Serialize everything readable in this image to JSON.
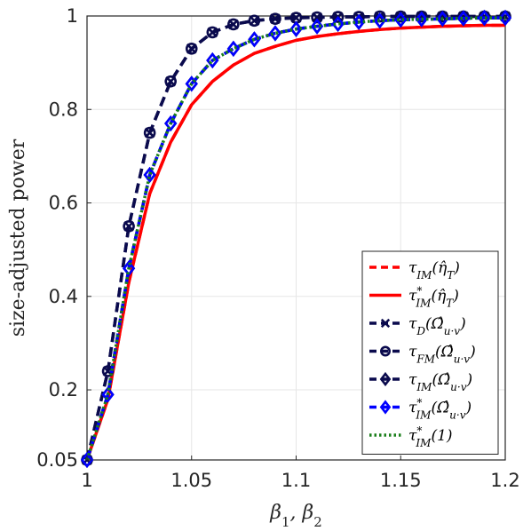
{
  "chart_data": {
    "type": "line",
    "xlabel": "β1, β2",
    "ylabel": "size-adjusted power",
    "xlim": [
      1,
      1.2
    ],
    "ylim": [
      0.05,
      1
    ],
    "xticks": [
      "1",
      "1.05",
      "1.1",
      "1.15",
      "1.2"
    ],
    "yticks": [
      "0.05",
      "0.2",
      "0.4",
      "0.6",
      "0.8",
      "1"
    ],
    "grid": true,
    "legend_position": "bottom-right",
    "x": [
      1,
      1.01,
      1.02,
      1.03,
      1.04,
      1.05,
      1.06,
      1.07,
      1.08,
      1.09,
      1.1,
      1.11,
      1.12,
      1.13,
      1.14,
      1.15,
      1.16,
      1.17,
      1.18,
      1.19,
      1.2
    ],
    "series": [
      {
        "name": "τIM(η̂T)",
        "color": "#ff0000",
        "style": "dashed",
        "marker": "none",
        "values": [
          0.05,
          0.18,
          0.43,
          0.62,
          0.73,
          0.81,
          0.86,
          0.895,
          0.92,
          0.935,
          0.948,
          0.956,
          0.962,
          0.967,
          0.971,
          0.974,
          0.976,
          0.978,
          0.979,
          0.98,
          0.98
        ]
      },
      {
        "name": "τ*IM(η̂T)",
        "color": "#ff0000",
        "style": "solid",
        "marker": "none",
        "values": [
          0.05,
          0.18,
          0.43,
          0.62,
          0.73,
          0.81,
          0.86,
          0.895,
          0.92,
          0.935,
          0.948,
          0.956,
          0.962,
          0.967,
          0.971,
          0.974,
          0.976,
          0.978,
          0.979,
          0.98,
          0.98
        ]
      },
      {
        "name": "τD(Ω̂u·v)",
        "color": "#0a0a4d",
        "style": "dashed",
        "marker": "x",
        "values": [
          0.05,
          0.24,
          0.55,
          0.75,
          0.86,
          0.93,
          0.965,
          0.982,
          0.99,
          0.994,
          0.996,
          0.997,
          0.998,
          0.998,
          0.999,
          0.999,
          0.999,
          0.999,
          0.999,
          0.999,
          0.999
        ]
      },
      {
        "name": "τFM(Ω̂u·v)",
        "color": "#0a0a4d",
        "style": "dashed",
        "marker": "o",
        "values": [
          0.05,
          0.24,
          0.55,
          0.75,
          0.86,
          0.93,
          0.965,
          0.982,
          0.99,
          0.994,
          0.996,
          0.997,
          0.998,
          0.998,
          0.999,
          0.999,
          0.999,
          0.999,
          0.999,
          0.999,
          0.999
        ]
      },
      {
        "name": "τIM(Ω̂u·v)",
        "color": "#0a0a4d",
        "style": "dashed",
        "marker": "diamond",
        "values": [
          0.05,
          0.19,
          0.46,
          0.66,
          0.77,
          0.855,
          0.905,
          0.93,
          0.95,
          0.963,
          0.972,
          0.978,
          0.983,
          0.987,
          0.99,
          0.992,
          0.993,
          0.994,
          0.995,
          0.996,
          0.996
        ]
      },
      {
        "name": "τ*IM(Ω̂u·v)",
        "color": "#0000ff",
        "style": "dashed",
        "marker": "diamond",
        "values": [
          0.05,
          0.19,
          0.46,
          0.66,
          0.77,
          0.855,
          0.905,
          0.93,
          0.95,
          0.963,
          0.972,
          0.978,
          0.983,
          0.987,
          0.99,
          0.992,
          0.993,
          0.994,
          0.995,
          0.996,
          0.996
        ]
      },
      {
        "name": "τ*IM(1)",
        "color": "#1a7f1a",
        "style": "dotted",
        "marker": "none",
        "values": [
          0.05,
          0.19,
          0.46,
          0.66,
          0.77,
          0.855,
          0.905,
          0.93,
          0.95,
          0.963,
          0.972,
          0.978,
          0.983,
          0.987,
          0.99,
          0.992,
          0.993,
          0.994,
          0.995,
          0.996,
          0.996
        ]
      }
    ],
    "legend": [
      {
        "base": "τ",
        "sub": "IM",
        "star": false,
        "arg": "(η̂",
        "argsub": "T",
        "close": ")"
      },
      {
        "base": "τ",
        "sub": "IM",
        "star": true,
        "arg": "(η̂",
        "argsub": "T",
        "close": ")"
      },
      {
        "base": "τ",
        "sub": "D",
        "star": false,
        "arg": "(Ω̂",
        "argsub": "u·v",
        "close": ")"
      },
      {
        "base": "τ",
        "sub": "FM",
        "star": false,
        "arg": "(Ω̂",
        "argsub": "u·v",
        "close": ")"
      },
      {
        "base": "τ",
        "sub": "IM",
        "star": false,
        "arg": "(Ω̂",
        "argsub": "u·v",
        "close": ")"
      },
      {
        "base": "τ",
        "sub": "IM",
        "star": true,
        "arg": "(Ω̂",
        "argsub": "u·v",
        "close": ")"
      },
      {
        "base": "τ",
        "sub": "IM",
        "star": true,
        "arg": "(1",
        "argsub": "",
        "close": ")"
      }
    ]
  }
}
